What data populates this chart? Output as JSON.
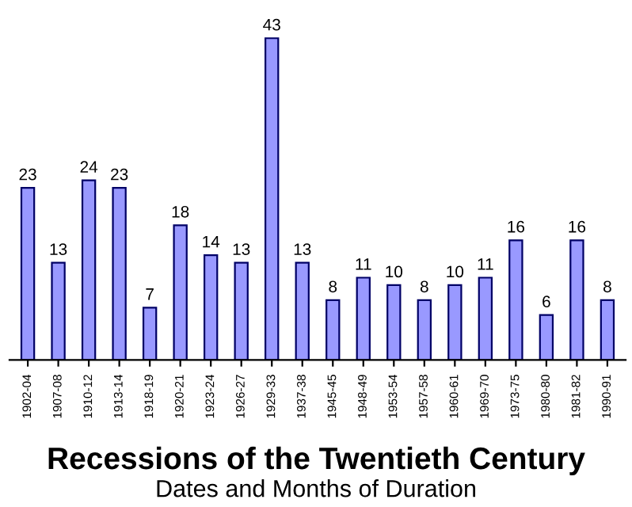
{
  "chart_data": {
    "type": "bar",
    "title": "Recessions of the Twentieth Century",
    "subtitle": "Dates and Months of Duration",
    "categories": [
      "1902-04",
      "1907-08",
      "1910-12",
      "1913-14",
      "1918-19",
      "1920-21",
      "1923-24",
      "1926-27",
      "1929-33",
      "1937-38",
      "1945-45",
      "1948-49",
      "1953-54",
      "1957-58",
      "1960-61",
      "1969-70",
      "1973-75",
      "1980-80",
      "1981-82",
      "1990-91"
    ],
    "values": [
      23,
      13,
      24,
      23,
      7,
      18,
      14,
      13,
      43,
      13,
      8,
      11,
      10,
      8,
      10,
      11,
      16,
      6,
      16,
      8
    ],
    "color": "#9999ff",
    "data_labels": true,
    "grid": false,
    "legend": false
  }
}
